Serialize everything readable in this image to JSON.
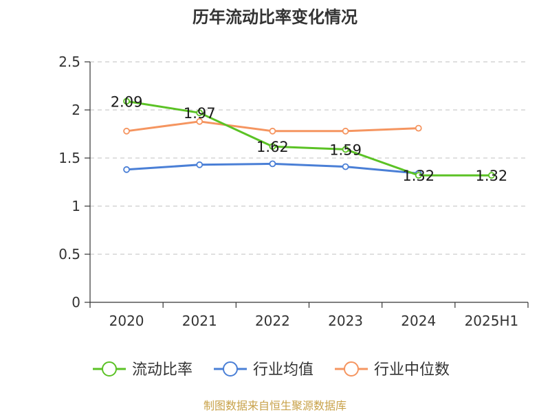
{
  "chart_data": {
    "type": "line",
    "title": "历年流动比率变化情况",
    "categories": [
      "2020",
      "2021",
      "2022",
      "2023",
      "2024",
      "2025H1"
    ],
    "ylim": [
      0,
      2.5
    ],
    "yticks": [
      "0",
      "0.5",
      "1",
      "1.5",
      "2",
      "2.5"
    ],
    "grid": true,
    "legend_position": "bottom",
    "series": [
      {
        "name": "流动比率",
        "color": "#5bc225",
        "values": [
          2.09,
          1.97,
          1.62,
          1.59,
          1.32,
          1.32
        ],
        "labels": [
          "2.09",
          "1.97",
          "1.62",
          "1.59",
          "1.32",
          "1.32"
        ]
      },
      {
        "name": "行业均值",
        "color": "#4a7fd6",
        "values": [
          1.38,
          1.43,
          1.44,
          1.41,
          1.34,
          null
        ]
      },
      {
        "name": "行业中位数",
        "color": "#f59560",
        "values": [
          1.78,
          1.88,
          1.78,
          1.78,
          1.81,
          null
        ]
      }
    ],
    "source": "制图数据来自恒生聚源数据库"
  }
}
